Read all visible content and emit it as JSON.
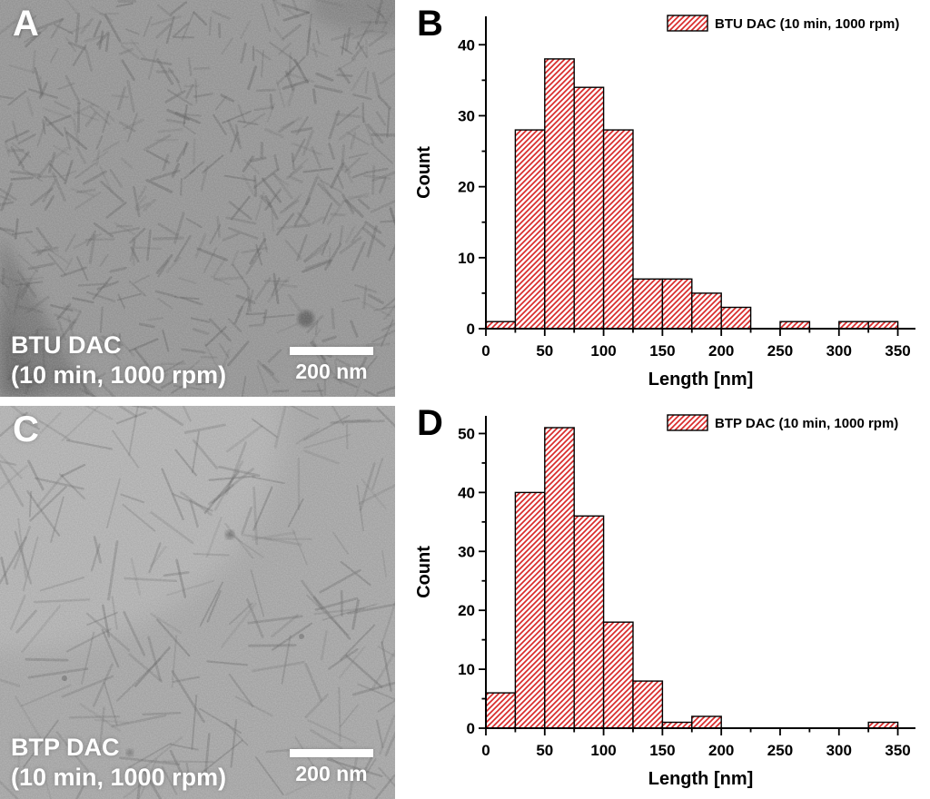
{
  "figure": {
    "background": "#ffffff"
  },
  "panels": {
    "A": {
      "letter": "A",
      "sample": "BTU DAC",
      "conditions": "(10 min, 1000 rpm)",
      "scale_bar_label": "200 nm",
      "base_color": "#979797"
    },
    "B": {
      "letter": "B"
    },
    "C": {
      "letter": "C",
      "sample": "BTP DAC",
      "conditions": "(10 min, 1000 rpm)",
      "scale_bar_label": "200 nm",
      "base_color": "#a8a8a8"
    },
    "D": {
      "letter": "D"
    }
  },
  "chart_data": [
    {
      "type": "bar",
      "panel": "B",
      "legend": "BTU DAC (10 min, 1000 rpm)",
      "xlabel": "Length [nm]",
      "ylabel": "Count",
      "bin_start": 0,
      "bin_width": 25,
      "values": [
        1,
        28,
        38,
        34,
        28,
        7,
        7,
        5,
        3,
        0,
        1,
        0,
        1,
        1
      ],
      "xticks": [
        0,
        50,
        100,
        150,
        200,
        250,
        300,
        350
      ],
      "yticks": [
        0,
        10,
        20,
        30,
        40
      ],
      "xlim": [
        0,
        365
      ],
      "ylim": [
        0,
        44
      ],
      "grid": false,
      "legend_position": "top-right",
      "bar_fill": "#ffffff",
      "hatch_color": "#d92b2b",
      "axis_color": "#000000"
    },
    {
      "type": "bar",
      "panel": "D",
      "legend": "BTP DAC (10 min, 1000 rpm)",
      "xlabel": "Length [nm]",
      "ylabel": "Count",
      "bin_start": 0,
      "bin_width": 25,
      "values": [
        6,
        40,
        51,
        36,
        18,
        8,
        1,
        2,
        0,
        0,
        0,
        0,
        0,
        1
      ],
      "xticks": [
        0,
        50,
        100,
        150,
        200,
        250,
        300,
        350
      ],
      "yticks": [
        0,
        10,
        20,
        30,
        40,
        50
      ],
      "xlim": [
        0,
        365
      ],
      "ylim": [
        0,
        53
      ],
      "grid": false,
      "legend_position": "top-right",
      "bar_fill": "#ffffff",
      "hatch_color": "#d92b2b",
      "axis_color": "#000000"
    }
  ]
}
